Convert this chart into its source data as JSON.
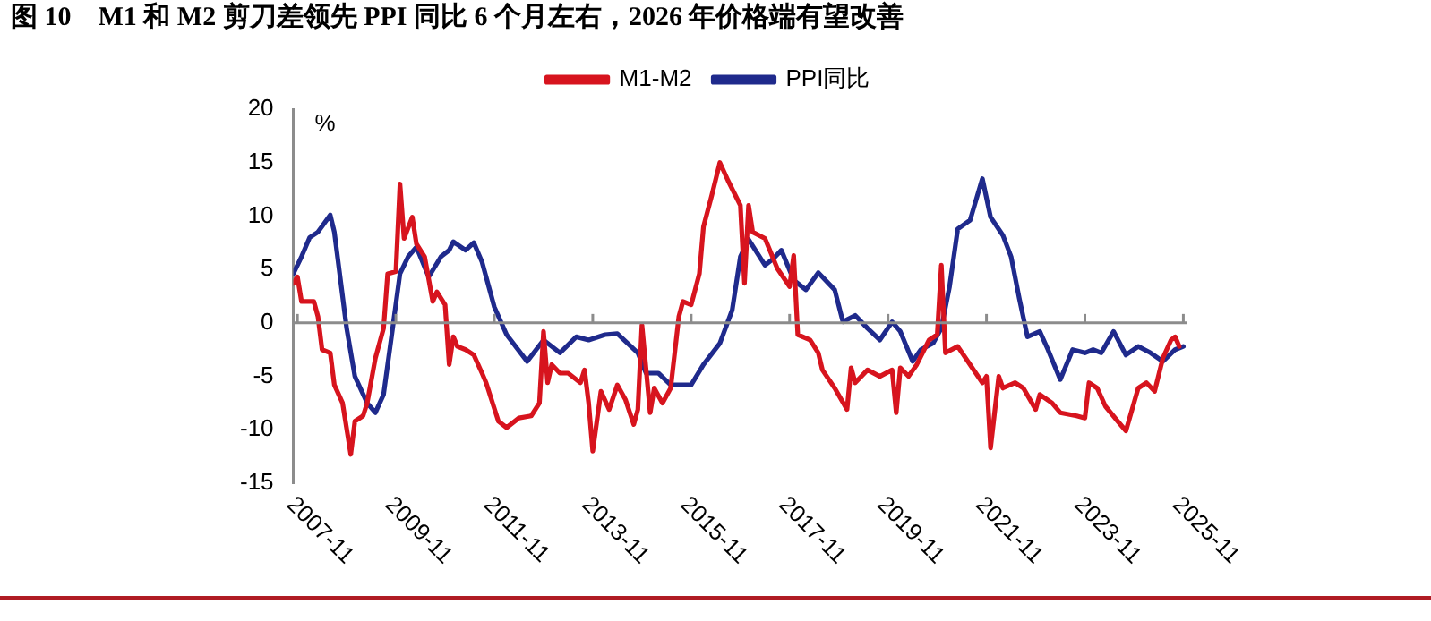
{
  "chart_data": {
    "type": "line",
    "title": "图 10　M1 和 M2 剪刀差领先 PPI 同比 6 个月左右，2026 年价格端有望改善",
    "ylabel": "%",
    "legend": "top",
    "marker": "none",
    "line_style": "solid",
    "xlim": [
      "2007-10",
      "2025-12"
    ],
    "xticks": [
      "2007-11",
      "2009-11",
      "2011-11",
      "2013-11",
      "2015-11",
      "2017-11",
      "2019-11",
      "2021-11",
      "2023-11",
      "2025-11"
    ],
    "ylim": [
      -15,
      20
    ],
    "yticks": [
      -15,
      -10,
      -5,
      0,
      5,
      10,
      15,
      20
    ],
    "series": [
      {
        "name": "M1-M2",
        "color": "#d7141e",
        "x": [
          "2007-10",
          "2007-11",
          "2007-12",
          "2008-03",
          "2008-04",
          "2008-05",
          "2008-07",
          "2008-08",
          "2008-10",
          "2008-12",
          "2009-01",
          "2009-03",
          "2009-04",
          "2009-06",
          "2009-08",
          "2009-09",
          "2009-11",
          "2009-12",
          "2010-01",
          "2010-03",
          "2010-04",
          "2010-06",
          "2010-08",
          "2010-09",
          "2010-11",
          "2010-12",
          "2011-01",
          "2011-02",
          "2011-04",
          "2011-06",
          "2011-08",
          "2011-09",
          "2011-12",
          "2012-02",
          "2012-05",
          "2012-08",
          "2012-10",
          "2012-11",
          "2012-12",
          "2013-01",
          "2013-03",
          "2013-05",
          "2013-08",
          "2013-09",
          "2013-10",
          "2013-11",
          "2014-01",
          "2014-03",
          "2014-05",
          "2014-07",
          "2014-09",
          "2014-10",
          "2014-11",
          "2015-01",
          "2015-02",
          "2015-04",
          "2015-06",
          "2015-08",
          "2015-09",
          "2015-11",
          "2016-01",
          "2016-02",
          "2016-04",
          "2016-06",
          "2016-08",
          "2016-11",
          "2016-12",
          "2017-01",
          "2017-02",
          "2017-05",
          "2017-08",
          "2017-11",
          "2017-12",
          "2018-01",
          "2018-04",
          "2018-06",
          "2018-07",
          "2018-10",
          "2019-01",
          "2019-02",
          "2019-03",
          "2019-06",
          "2019-09",
          "2019-12",
          "2020-01",
          "2020-02",
          "2020-04",
          "2020-06",
          "2020-09",
          "2020-11",
          "2020-12",
          "2021-01",
          "2021-04",
          "2021-07",
          "2021-10",
          "2021-11",
          "2021-12",
          "2022-02",
          "2022-03",
          "2022-06",
          "2022-08",
          "2022-11",
          "2022-12",
          "2023-03",
          "2023-05",
          "2023-09",
          "2023-11",
          "2023-12",
          "2024-02",
          "2024-04",
          "2024-07",
          "2024-09",
          "2024-12",
          "2025-02",
          "2025-04",
          "2025-06",
          "2025-08",
          "2025-09",
          "2025-10"
        ],
        "values": [
          3.7,
          4.3,
          2.0,
          2.0,
          0.6,
          -2.5,
          -2.8,
          -5.8,
          -7.5,
          -12.3,
          -9.2,
          -8.7,
          -7.5,
          -3.3,
          -0.5,
          4.6,
          4.8,
          13.0,
          7.9,
          9.9,
          7.4,
          6.2,
          2.0,
          2.9,
          1.7,
          -3.9,
          -1.3,
          -2.2,
          -2.5,
          -3.0,
          -4.7,
          -5.6,
          -9.2,
          -9.8,
          -8.9,
          -8.7,
          -7.5,
          -0.8,
          -5.6,
          -3.9,
          -4.7,
          -4.7,
          -5.6,
          -4.4,
          -7.5,
          -12.0,
          -6.4,
          -8.1,
          -5.8,
          -7.2,
          -9.5,
          -8.1,
          -0.2,
          -8.4,
          -6.1,
          -7.5,
          -6.1,
          0.6,
          2.0,
          1.7,
          4.6,
          9.0,
          11.9,
          15.0,
          13.3,
          11.0,
          3.7,
          11.0,
          8.5,
          7.9,
          5.1,
          3.4,
          6.3,
          -1.1,
          -1.6,
          -2.8,
          -4.4,
          -6.1,
          -8.1,
          -4.2,
          -5.6,
          -4.4,
          -5.0,
          -4.4,
          -8.4,
          -4.2,
          -5.0,
          -3.9,
          -1.6,
          -1.1,
          5.4,
          -2.8,
          -2.2,
          -3.9,
          -5.6,
          -5.0,
          -11.7,
          -5.0,
          -6.1,
          -5.6,
          -6.1,
          -8.1,
          -6.7,
          -7.5,
          -8.4,
          -8.7,
          -8.9,
          -5.6,
          -6.1,
          -7.8,
          -9.2,
          -10.1,
          -6.1,
          -5.6,
          -6.4,
          -3.3,
          -1.6,
          -1.3,
          -2.2
        ]
      },
      {
        "name": "PPI同比",
        "color": "#1f2a8c",
        "x": [
          "2007-10",
          "2007-12",
          "2008-02",
          "2008-04",
          "2008-07",
          "2008-08",
          "2008-11",
          "2009-01",
          "2009-04",
          "2009-06",
          "2009-08",
          "2009-10",
          "2009-12",
          "2010-02",
          "2010-04",
          "2010-07",
          "2010-10",
          "2010-12",
          "2011-01",
          "2011-04",
          "2011-06",
          "2011-08",
          "2011-11",
          "2012-02",
          "2012-07",
          "2012-11",
          "2013-03",
          "2013-07",
          "2013-10",
          "2014-02",
          "2014-05",
          "2014-10",
          "2014-12",
          "2015-03",
          "2015-06",
          "2015-11",
          "2016-02",
          "2016-06",
          "2016-09",
          "2016-11",
          "2017-01",
          "2017-05",
          "2017-07",
          "2017-09",
          "2017-12",
          "2018-03",
          "2018-06",
          "2018-10",
          "2018-12",
          "2019-03",
          "2019-06",
          "2019-09",
          "2019-12",
          "2020-02",
          "2020-05",
          "2020-07",
          "2020-10",
          "2020-12",
          "2021-02",
          "2021-04",
          "2021-07",
          "2021-10",
          "2021-12",
          "2022-03",
          "2022-05",
          "2022-07",
          "2022-09",
          "2022-12",
          "2023-02",
          "2023-05",
          "2023-08",
          "2023-11",
          "2024-01",
          "2024-03",
          "2024-06",
          "2024-09",
          "2024-12",
          "2025-03",
          "2025-06",
          "2025-09",
          "2025-11"
        ],
        "values": [
          4.6,
          6.2,
          8.0,
          8.5,
          10.1,
          8.5,
          -0.5,
          -5.0,
          -7.5,
          -8.4,
          -6.7,
          -1.1,
          4.6,
          6.2,
          7.1,
          4.3,
          6.2,
          6.8,
          7.6,
          6.8,
          7.5,
          5.7,
          1.5,
          -1.1,
          -3.6,
          -1.6,
          -2.8,
          -1.3,
          -1.6,
          -1.1,
          -1.0,
          -2.8,
          -4.7,
          -4.7,
          -5.8,
          -5.8,
          -3.9,
          -1.9,
          1.2,
          6.2,
          7.8,
          5.4,
          6.0,
          6.8,
          4.0,
          3.1,
          4.7,
          3.1,
          0.1,
          0.7,
          -0.5,
          -1.6,
          0.1,
          -0.8,
          -3.6,
          -2.5,
          -1.9,
          -0.5,
          3.4,
          8.8,
          9.6,
          13.5,
          9.9,
          8.2,
          6.2,
          2.3,
          -1.3,
          -0.8,
          -2.5,
          -5.3,
          -2.5,
          -2.8,
          -2.5,
          -2.8,
          -0.8,
          -3.0,
          -2.2,
          -2.8,
          -3.6,
          -2.5,
          -2.2
        ]
      }
    ]
  }
}
